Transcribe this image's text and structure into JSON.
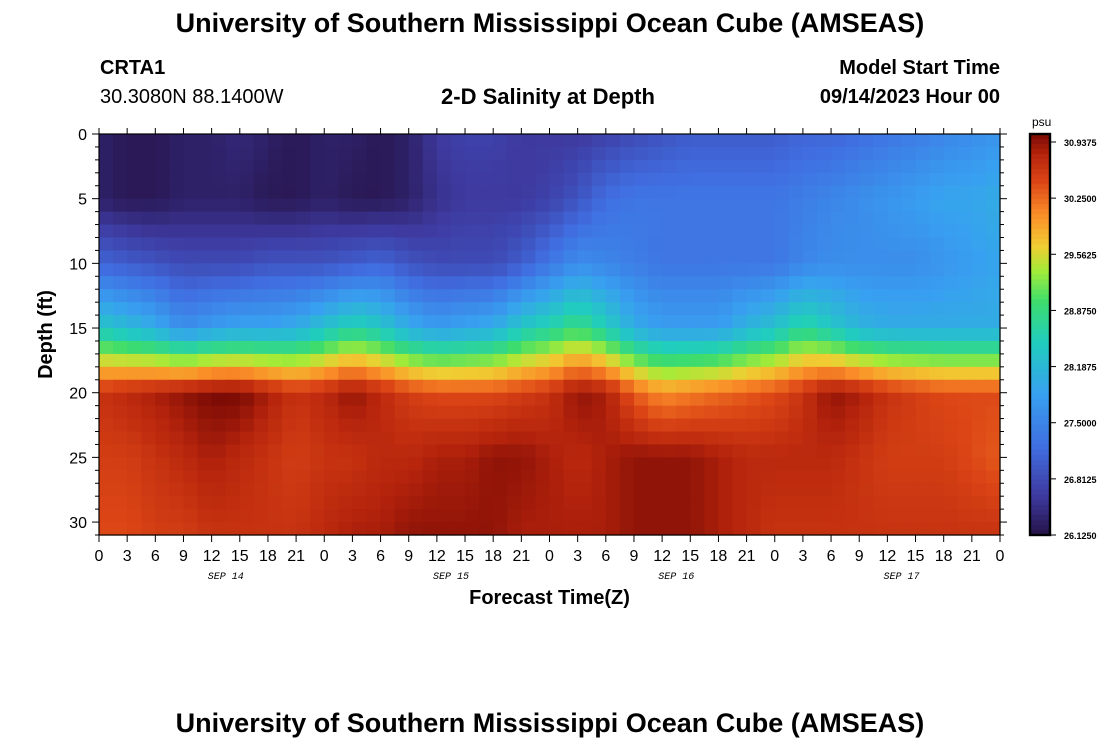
{
  "header": {
    "title": "University of Southern Mississippi Ocean Cube (AMSEAS)",
    "station": "CRTA1",
    "coords": "30.3080N  88.1400W",
    "chart_title": "2-D Salinity at Depth",
    "model_label": "Model Start Time",
    "model_time": "09/14/2023 Hour 00"
  },
  "footer": {
    "title": "University of Southern Mississippi Ocean Cube (AMSEAS)"
  },
  "chart_data": {
    "type": "heatmap",
    "title": "2-D Salinity at Depth",
    "xlabel": "Forecast Time(Z)",
    "ylabel": "Depth (ft)",
    "x_ticks": [
      "0",
      "3",
      "6",
      "9",
      "12",
      "15",
      "18",
      "21",
      "0",
      "3",
      "6",
      "9",
      "12",
      "15",
      "18",
      "21",
      "0",
      "3",
      "6",
      "9",
      "12",
      "15",
      "18",
      "21",
      "0",
      "3",
      "6",
      "9",
      "12",
      "15",
      "18",
      "21",
      "0"
    ],
    "day_labels": [
      "SEP 14",
      "SEP 15",
      "SEP 16",
      "SEP 17"
    ],
    "y_ticks": [
      0,
      5,
      10,
      15,
      20,
      25,
      30
    ],
    "ylim": [
      0,
      31
    ],
    "xlim_hours": [
      0,
      96
    ],
    "colorbar": {
      "unit": "psu",
      "ticks": [
        "30.9375",
        "30.2500",
        "29.5625",
        "28.8750",
        "28.1875",
        "27.5000",
        "26.8125",
        "26.1250"
      ],
      "min": 26.125,
      "max": 31.0
    },
    "depths_ft": [
      0,
      5,
      10,
      15,
      20,
      25,
      31
    ],
    "times_hours": [
      0,
      3,
      6,
      9,
      12,
      15,
      18,
      21,
      24,
      27,
      30,
      33,
      36,
      39,
      42,
      45,
      48,
      51,
      54,
      57,
      60,
      63,
      66,
      69,
      72,
      75,
      78,
      81,
      84,
      87,
      90,
      93,
      96
    ],
    "salinity_psu": [
      [
        26.3,
        26.2,
        26.2,
        26.3,
        26.3,
        26.4,
        26.3,
        26.2,
        26.3,
        26.3,
        26.2,
        26.3,
        26.6,
        26.7,
        26.7,
        26.6,
        26.6,
        26.6,
        26.7,
        26.8,
        26.9,
        27.0,
        27.0,
        27.0,
        27.0,
        27.1,
        27.1,
        27.2,
        27.3,
        27.4,
        27.5,
        27.6,
        27.7
      ],
      [
        26.3,
        26.2,
        26.2,
        26.3,
        26.3,
        26.3,
        26.2,
        26.2,
        26.3,
        26.2,
        26.2,
        26.3,
        26.5,
        26.6,
        26.6,
        26.6,
        26.7,
        26.9,
        27.2,
        27.3,
        27.3,
        27.3,
        27.3,
        27.3,
        27.3,
        27.4,
        27.5,
        27.6,
        27.7,
        27.8,
        27.9,
        27.9,
        28.0
      ],
      [
        27.1,
        27.0,
        26.9,
        26.8,
        26.8,
        26.8,
        26.9,
        26.9,
        26.9,
        27.0,
        27.1,
        26.9,
        26.8,
        26.8,
        26.8,
        27.0,
        27.3,
        27.6,
        27.5,
        27.4,
        27.3,
        27.3,
        27.3,
        27.3,
        27.3,
        27.5,
        27.6,
        27.6,
        27.6,
        27.6,
        27.7,
        27.8,
        27.9
      ],
      [
        28.4,
        28.2,
        28.0,
        27.6,
        27.8,
        27.9,
        27.9,
        28.0,
        28.3,
        28.6,
        28.4,
        28.0,
        27.8,
        27.9,
        28.0,
        28.4,
        28.6,
        28.9,
        28.5,
        28.0,
        27.8,
        27.8,
        27.8,
        28.1,
        28.3,
        28.7,
        28.4,
        28.1,
        28.0,
        28.0,
        28.0,
        28.0,
        28.0
      ],
      [
        30.6,
        30.7,
        30.8,
        30.9,
        31.0,
        31.0,
        30.8,
        30.6,
        30.7,
        30.9,
        30.7,
        30.5,
        30.4,
        30.4,
        30.4,
        30.5,
        30.6,
        30.9,
        30.8,
        30.3,
        30.0,
        30.1,
        30.2,
        30.3,
        30.4,
        30.6,
        30.9,
        30.8,
        30.6,
        30.5,
        30.4,
        30.4,
        30.4
      ],
      [
        30.5,
        30.5,
        30.6,
        30.7,
        30.8,
        30.7,
        30.6,
        30.5,
        30.6,
        30.6,
        30.7,
        30.7,
        30.8,
        30.8,
        30.9,
        30.9,
        30.8,
        30.7,
        30.8,
        30.9,
        30.9,
        30.9,
        30.8,
        30.7,
        30.7,
        30.7,
        30.7,
        30.6,
        30.5,
        30.5,
        30.5,
        30.4,
        30.3
      ],
      [
        30.4,
        30.4,
        30.5,
        30.5,
        30.6,
        30.6,
        30.6,
        30.6,
        30.7,
        30.8,
        30.8,
        30.9,
        30.9,
        30.9,
        30.9,
        30.8,
        30.8,
        30.8,
        30.8,
        30.9,
        30.9,
        30.9,
        30.8,
        30.7,
        30.6,
        30.6,
        30.6,
        30.6,
        30.6,
        30.6,
        30.6,
        30.6,
        30.6
      ]
    ]
  }
}
